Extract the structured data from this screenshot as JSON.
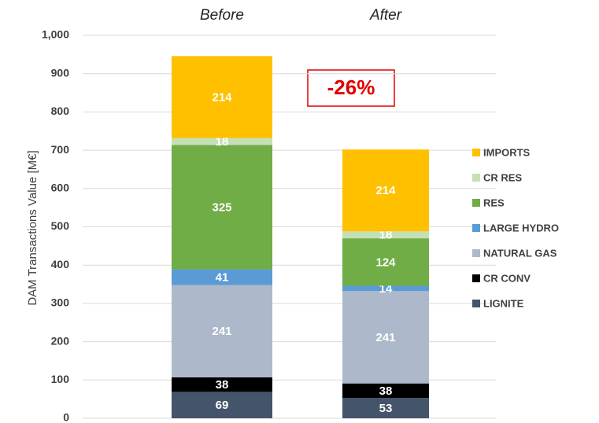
{
  "chart_data": {
    "type": "stacked_bar",
    "ylabel": "DAM Transactions Value [M€]",
    "annotation": "-26%",
    "categories": [
      "Before",
      "After"
    ],
    "series": [
      {
        "name": "LIGNITE",
        "color": "#44546a",
        "values": [
          69,
          53
        ]
      },
      {
        "name": "CR CONV",
        "color": "#000000",
        "values": [
          38,
          38
        ]
      },
      {
        "name": "NATURAL GAS",
        "color": "#adb9ca",
        "values": [
          241,
          241
        ]
      },
      {
        "name": "LARGE HYDRO",
        "color": "#5b9bd5",
        "values": [
          41,
          14
        ]
      },
      {
        "name": "RES",
        "color": "#70ad47",
        "values": [
          325,
          124
        ]
      },
      {
        "name": "CR RES",
        "color": "#c5e0b4",
        "values": [
          18,
          18
        ]
      },
      {
        "name": "IMPORTS",
        "color": "#ffc000",
        "values": [
          214,
          214
        ]
      }
    ],
    "ylim": [
      0,
      1000
    ],
    "yticks": [
      0,
      100,
      200,
      300,
      400,
      500,
      600,
      700,
      800,
      900,
      {
        "value": 1000,
        "label": "1,000"
      }
    ],
    "grid": true,
    "legend": "right"
  }
}
